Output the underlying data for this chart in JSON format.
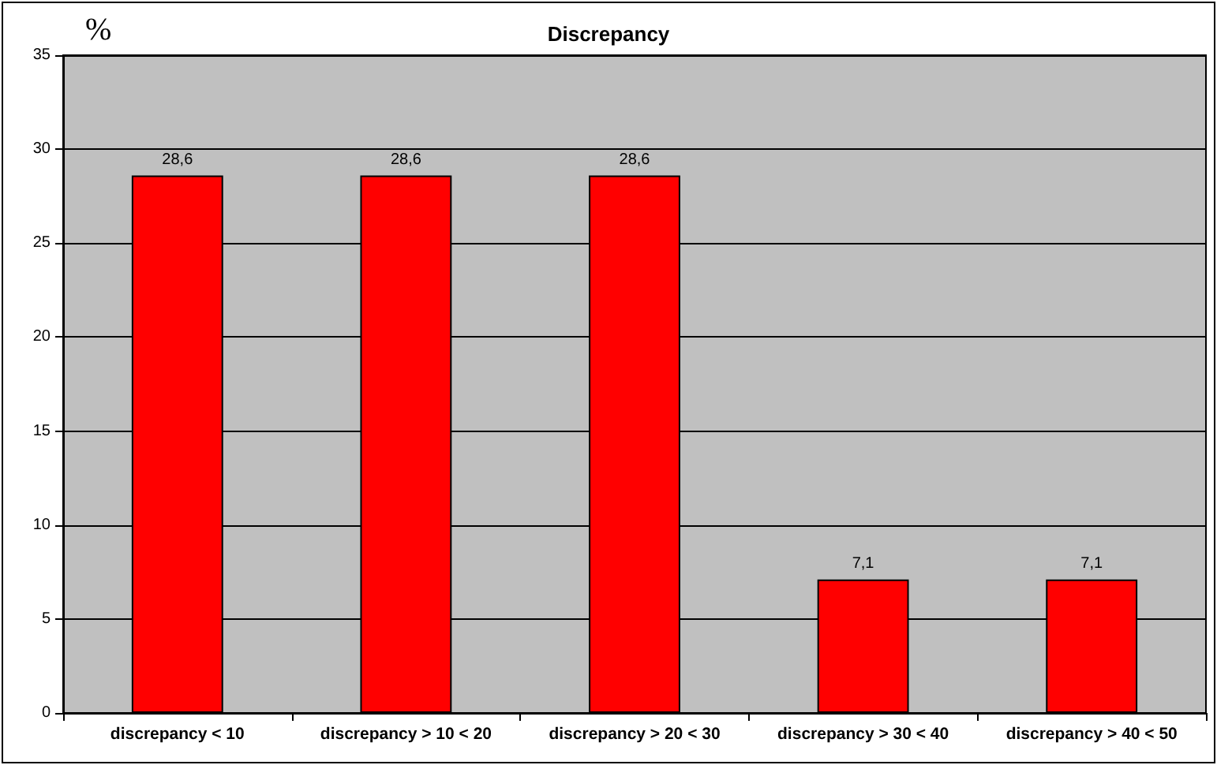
{
  "chart_data": {
    "type": "bar",
    "title": "Discrepancy",
    "ylabel": "%",
    "categories": [
      "discrepancy < 10",
      "discrepancy > 10 < 20",
      "discrepancy > 20 < 30",
      "discrepancy > 30 < 40",
      "discrepancy > 40 < 50"
    ],
    "values": [
      28.6,
      28.6,
      28.6,
      7.1,
      7.1
    ],
    "value_labels": [
      "28,6",
      "28,6",
      "28,6",
      "7,1",
      "7,1"
    ],
    "color": "#ff0000",
    "ylim": [
      0,
      35
    ],
    "yticks": [
      0,
      5,
      10,
      15,
      20,
      25,
      30,
      35
    ],
    "grid": "y"
  }
}
